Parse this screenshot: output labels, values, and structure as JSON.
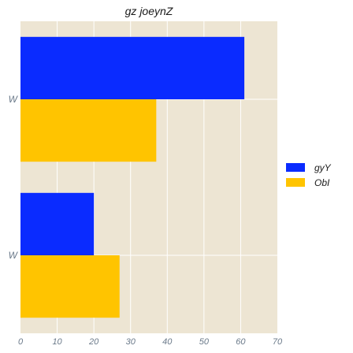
{
  "chart_data": {
    "type": "bar",
    "orientation": "horizontal",
    "title": "gz joeynZ",
    "xlabel": "",
    "ylabel": "",
    "categories": [
      "W",
      "W"
    ],
    "series": [
      {
        "name": "gyY",
        "color": "#0a2bff",
        "values": [
          61,
          20
        ]
      },
      {
        "name": "ObI",
        "color": "#ffc400",
        "values": [
          37,
          27
        ]
      }
    ],
    "xlim": [
      0,
      70
    ],
    "xticks": [
      0,
      10,
      20,
      30,
      40,
      50,
      60,
      70
    ],
    "grid": true,
    "plot_background": "#ede5d3",
    "grid_color": "#ffffff",
    "legend_position": "right"
  }
}
